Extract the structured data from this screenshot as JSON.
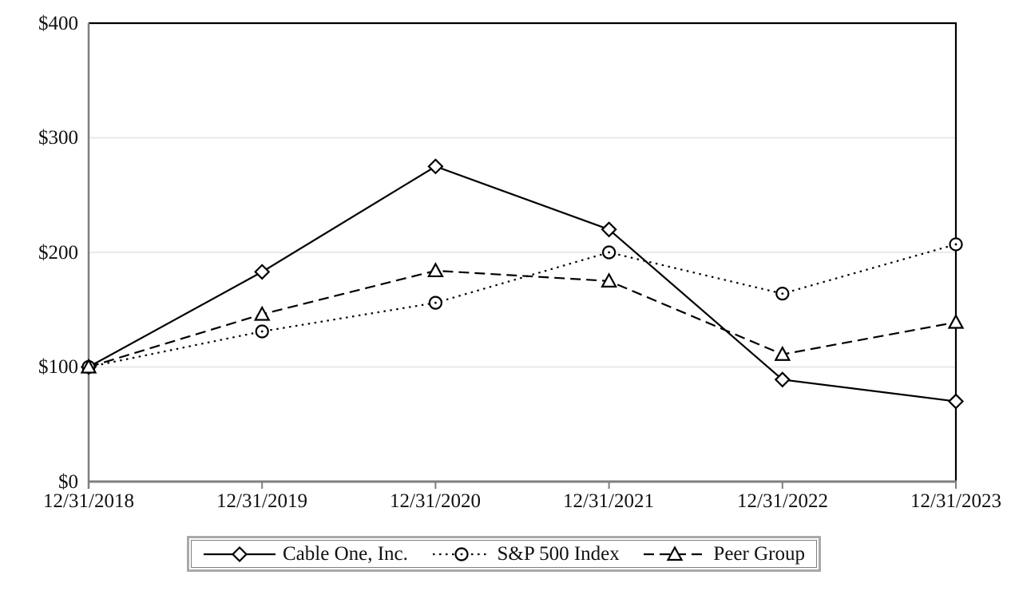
{
  "chart_data": {
    "type": "line",
    "title": "",
    "xlabel": "",
    "ylabel": "",
    "categories": [
      "12/31/2018",
      "12/31/2019",
      "12/31/2020",
      "12/31/2021",
      "12/31/2022",
      "12/31/2023"
    ],
    "series": [
      {
        "name": "Cable One, Inc.",
        "line_style": "solid",
        "marker": "diamond",
        "values": [
          100,
          183,
          275,
          220,
          89,
          70
        ]
      },
      {
        "name": "S&P 500 Index",
        "line_style": "dotted",
        "marker": "circle",
        "values": [
          100,
          131,
          156,
          200,
          164,
          207
        ]
      },
      {
        "name": "Peer Group",
        "line_style": "dashed",
        "marker": "triangle",
        "values": [
          100,
          146,
          184,
          175,
          111,
          139
        ]
      }
    ],
    "ylim": [
      0,
      400
    ],
    "y_tick_interval": 100,
    "y_tick_labels": [
      "$0",
      "$100",
      "$200",
      "$300",
      "$400"
    ],
    "grid": "horizontal-light",
    "legend_position": "bottom-boxed"
  },
  "colors": {
    "series_stroke": "#000000",
    "marker_fill": "#ffffff",
    "axis_gray": "#7f7f7f",
    "plot_border_black": "#000000",
    "gridline": "#e9e9e9",
    "legend_outer_border": "#a9a9a9",
    "legend_inner_border": "#7f7f7f",
    "background": "#ffffff",
    "text": "#111111"
  }
}
